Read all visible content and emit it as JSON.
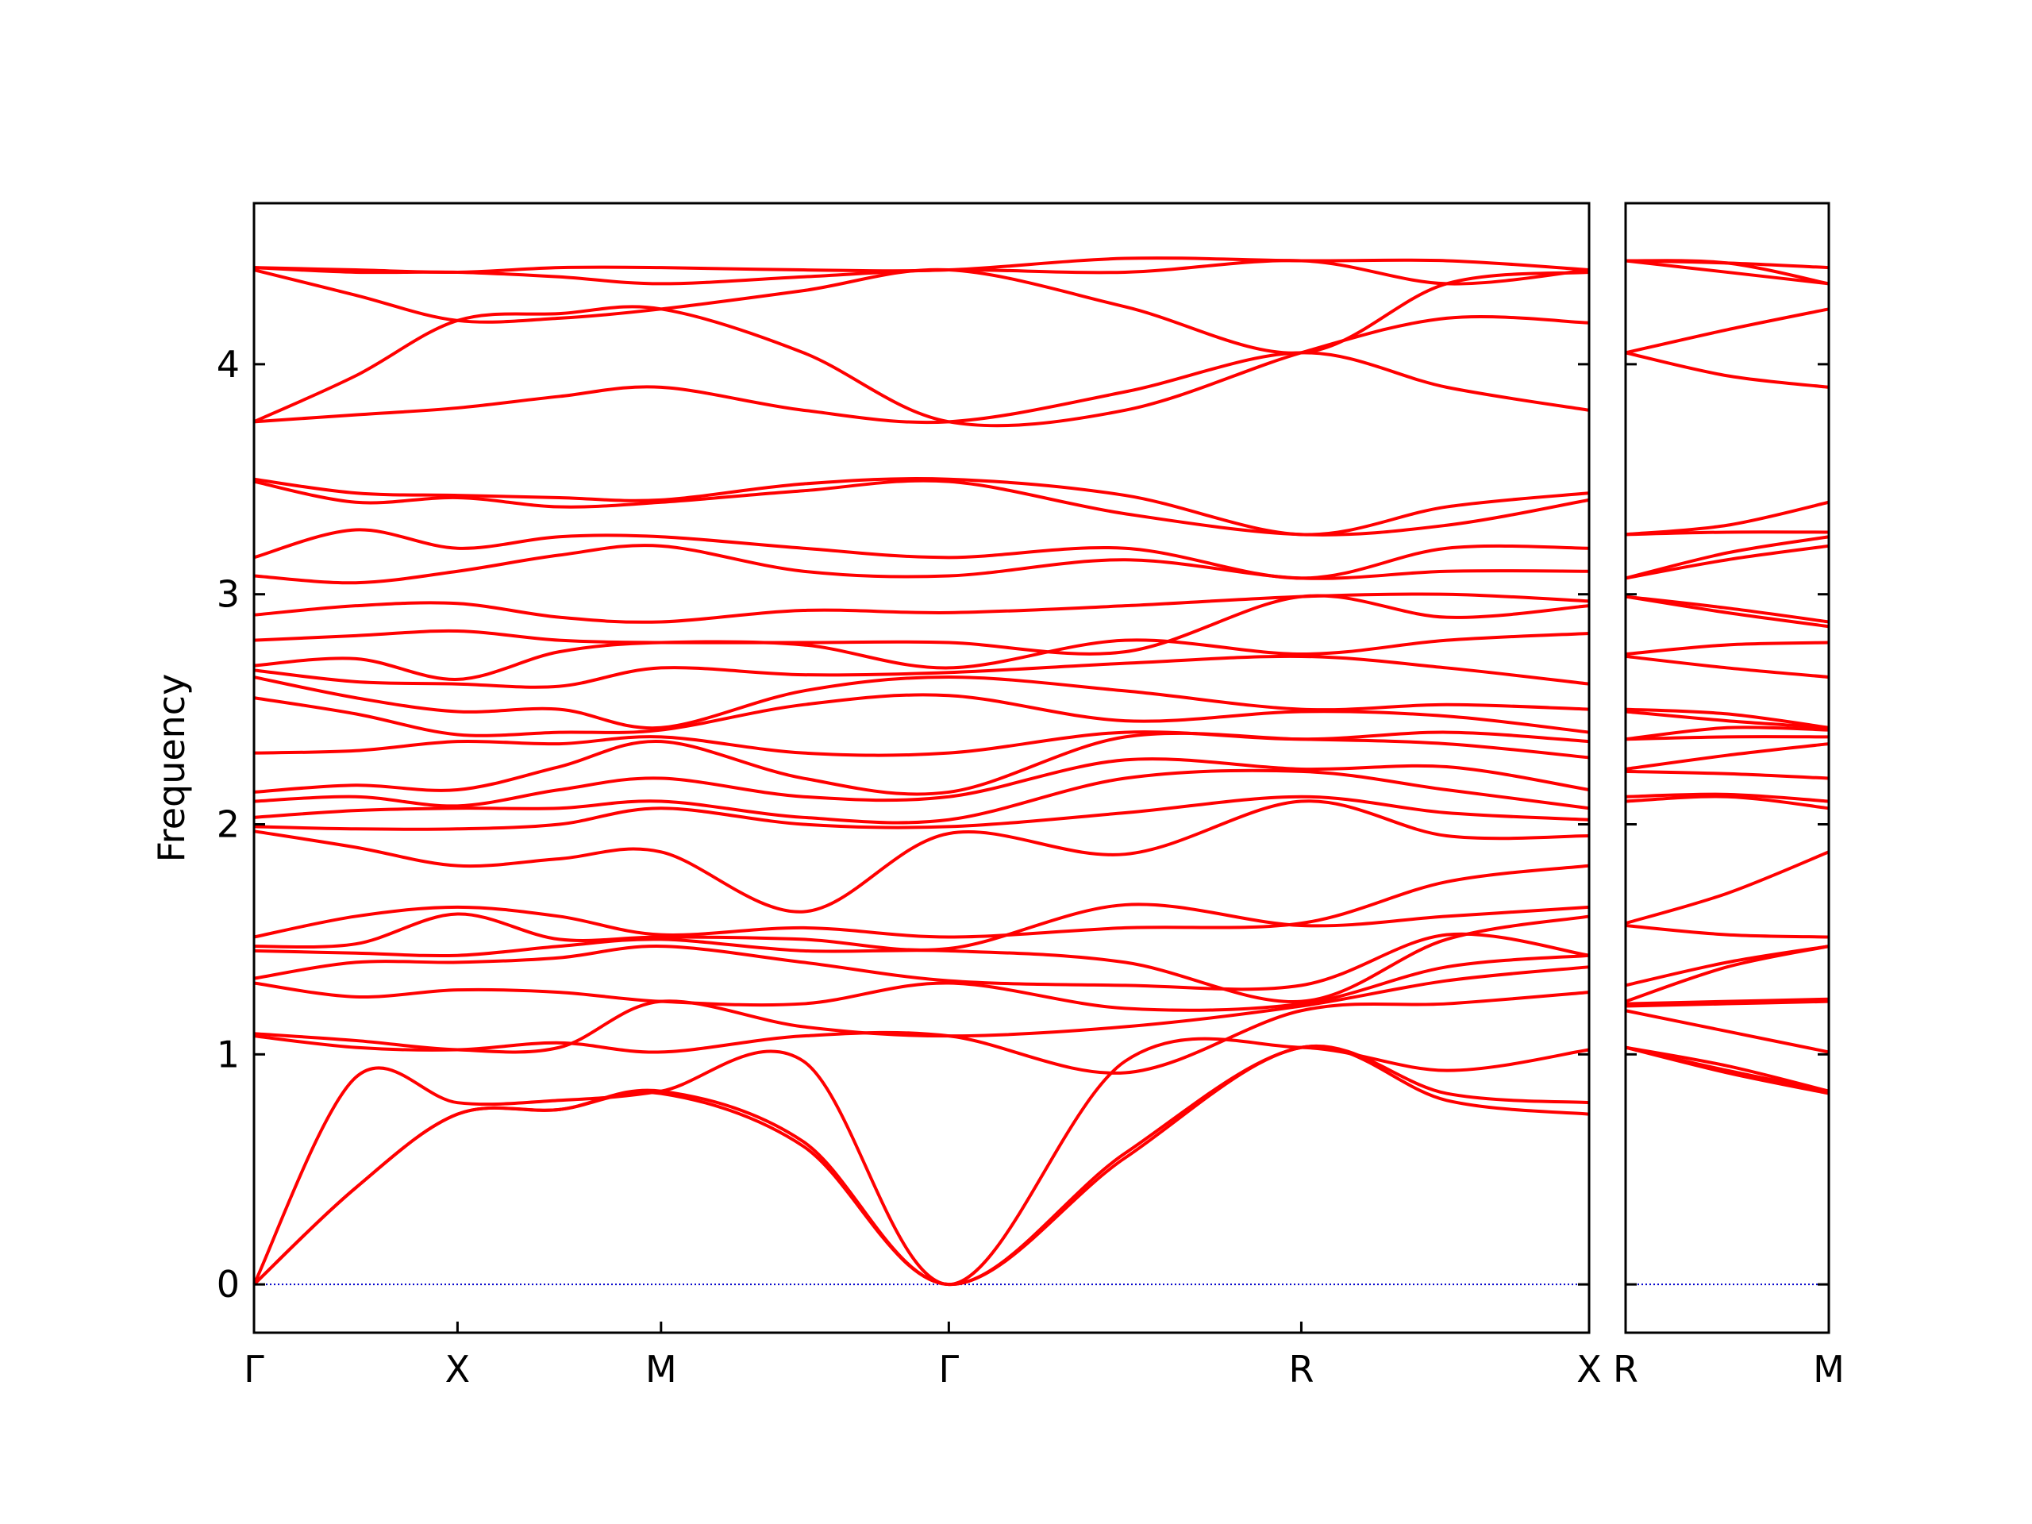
{
  "chart_data": [
    {
      "type": "line",
      "ylabel": "Frequency",
      "color": "#ff0000",
      "zero_line_color": "#0000cc",
      "ytick_labels": true,
      "x": [
        0,
        0.25,
        0.5,
        0.75,
        1.0,
        1.35,
        1.707,
        2.14,
        2.573,
        2.93,
        3.28
      ],
      "xlim": [
        0,
        3.28
      ],
      "xticks": [
        {
          "value": 0,
          "label": "Γ"
        },
        {
          "value": 0.5,
          "label": "X"
        },
        {
          "value": 1.0,
          "label": "M"
        },
        {
          "value": 1.707,
          "label": "Γ"
        },
        {
          "value": 2.573,
          "label": "R"
        },
        {
          "value": 3.28,
          "label": "X"
        }
      ],
      "ylim": [
        -0.21,
        4.7
      ],
      "yticks": [
        0,
        1,
        2,
        3,
        4
      ],
      "bands": [
        [
          0,
          0.42,
          0.74,
          0.76,
          0.83,
          0.6,
          0,
          0.55,
          1.03,
          0.8,
          0.74
        ],
        [
          0,
          0.42,
          0.74,
          0.76,
          0.84,
          0.62,
          0,
          0.57,
          1.03,
          0.83,
          0.79
        ],
        [
          0,
          0.9,
          0.79,
          0.8,
          0.84,
          0.97,
          0,
          0.97,
          1.03,
          0.93,
          1.02
        ],
        [
          1.08,
          1.03,
          1.02,
          1.05,
          1.01,
          1.08,
          1.08,
          0.92,
          1.19,
          1.22,
          1.27
        ],
        [
          1.09,
          1.06,
          1.02,
          1.03,
          1.23,
          1.12,
          1.08,
          1.12,
          1.21,
          1.32,
          1.38
        ],
        [
          1.31,
          1.25,
          1.28,
          1.27,
          1.23,
          1.22,
          1.31,
          1.2,
          1.22,
          1.38,
          1.43
        ],
        [
          1.33,
          1.4,
          1.4,
          1.42,
          1.47,
          1.4,
          1.32,
          1.3,
          1.3,
          1.52,
          1.43
        ],
        [
          1.45,
          1.44,
          1.43,
          1.47,
          1.5,
          1.45,
          1.45,
          1.4,
          1.23,
          1.5,
          1.6
        ],
        [
          1.47,
          1.48,
          1.61,
          1.5,
          1.51,
          1.5,
          1.46,
          1.65,
          1.56,
          1.6,
          1.64
        ],
        [
          1.51,
          1.6,
          1.64,
          1.6,
          1.52,
          1.55,
          1.51,
          1.55,
          1.57,
          1.75,
          1.82
        ],
        [
          1.97,
          1.9,
          1.82,
          1.85,
          1.88,
          1.62,
          1.96,
          1.87,
          2.1,
          1.95,
          1.95
        ],
        [
          1.99,
          1.98,
          1.98,
          2.0,
          2.07,
          2.0,
          1.99,
          2.05,
          2.12,
          2.05,
          2.02
        ],
        [
          2.03,
          2.06,
          2.07,
          2.07,
          2.1,
          2.03,
          2.02,
          2.2,
          2.23,
          2.15,
          2.07
        ],
        [
          2.1,
          2.12,
          2.08,
          2.15,
          2.2,
          2.12,
          2.12,
          2.28,
          2.24,
          2.25,
          2.15
        ],
        [
          2.14,
          2.17,
          2.15,
          2.25,
          2.36,
          2.2,
          2.14,
          2.38,
          2.37,
          2.35,
          2.29
        ],
        [
          2.31,
          2.32,
          2.36,
          2.35,
          2.38,
          2.31,
          2.31,
          2.4,
          2.37,
          2.4,
          2.36
        ],
        [
          2.55,
          2.48,
          2.39,
          2.4,
          2.41,
          2.52,
          2.56,
          2.45,
          2.49,
          2.47,
          2.4
        ],
        [
          2.64,
          2.55,
          2.49,
          2.5,
          2.42,
          2.58,
          2.64,
          2.58,
          2.5,
          2.52,
          2.5
        ],
        [
          2.67,
          2.62,
          2.61,
          2.6,
          2.68,
          2.65,
          2.66,
          2.7,
          2.73,
          2.68,
          2.61
        ],
        [
          2.69,
          2.72,
          2.63,
          2.75,
          2.79,
          2.78,
          2.68,
          2.8,
          2.74,
          2.8,
          2.83
        ],
        [
          2.8,
          2.82,
          2.84,
          2.8,
          2.79,
          2.79,
          2.79,
          2.75,
          2.99,
          2.9,
          2.95
        ],
        [
          2.91,
          2.95,
          2.96,
          2.9,
          2.88,
          2.93,
          2.92,
          2.95,
          2.99,
          3.0,
          2.97
        ],
        [
          3.08,
          3.05,
          3.1,
          3.17,
          3.21,
          3.1,
          3.08,
          3.15,
          3.07,
          3.1,
          3.1
        ],
        [
          3.16,
          3.28,
          3.2,
          3.25,
          3.25,
          3.2,
          3.16,
          3.2,
          3.07,
          3.2,
          3.2
        ],
        [
          3.49,
          3.4,
          3.42,
          3.38,
          3.4,
          3.45,
          3.49,
          3.35,
          3.26,
          3.3,
          3.41
        ],
        [
          3.5,
          3.44,
          3.43,
          3.42,
          3.41,
          3.48,
          3.5,
          3.43,
          3.26,
          3.38,
          3.44
        ],
        [
          3.75,
          3.78,
          3.81,
          3.86,
          3.9,
          3.8,
          3.75,
          3.88,
          4.05,
          3.9,
          3.8
        ],
        [
          3.75,
          3.95,
          4.19,
          4.22,
          4.24,
          4.05,
          3.75,
          3.8,
          4.05,
          4.2,
          4.18
        ],
        [
          4.41,
          4.3,
          4.19,
          4.2,
          4.24,
          4.32,
          4.41,
          4.25,
          4.05,
          4.35,
          4.4
        ],
        [
          4.42,
          4.4,
          4.4,
          4.38,
          4.35,
          4.38,
          4.41,
          4.4,
          4.45,
          4.35,
          4.41
        ],
        [
          4.42,
          4.41,
          4.4,
          4.42,
          4.42,
          4.41,
          4.41,
          4.46,
          4.45,
          4.45,
          4.41
        ]
      ]
    },
    {
      "type": "line",
      "color": "#ff0000",
      "zero_line_color": "#0000cc",
      "ytick_labels": false,
      "x": [
        0,
        0.25,
        0.5
      ],
      "xlim": [
        0,
        0.5
      ],
      "xticks": [
        {
          "value": 0,
          "label": "R"
        },
        {
          "value": 0.5,
          "label": "M"
        }
      ],
      "ylim": [
        -0.21,
        4.7
      ],
      "yticks": [
        0,
        1,
        2,
        3,
        4
      ],
      "bands": [
        [
          1.03,
          0.92,
          0.83
        ],
        [
          1.03,
          0.93,
          0.84
        ],
        [
          1.03,
          0.95,
          0.84
        ],
        [
          1.19,
          1.1,
          1.01
        ],
        [
          1.21,
          1.22,
          1.23
        ],
        [
          1.22,
          1.23,
          1.24
        ],
        [
          1.3,
          1.4,
          1.47
        ],
        [
          1.23,
          1.38,
          1.47
        ],
        [
          1.56,
          1.52,
          1.51
        ],
        [
          1.57,
          1.7,
          1.88
        ],
        [
          2.1,
          2.12,
          2.07
        ],
        [
          2.12,
          2.13,
          2.1
        ],
        [
          2.23,
          2.22,
          2.2
        ],
        [
          2.24,
          2.3,
          2.35
        ],
        [
          2.37,
          2.38,
          2.38
        ],
        [
          2.37,
          2.42,
          2.41
        ],
        [
          2.49,
          2.45,
          2.42
        ],
        [
          2.5,
          2.48,
          2.42
        ],
        [
          2.73,
          2.68,
          2.64
        ],
        [
          2.74,
          2.78,
          2.79
        ],
        [
          2.99,
          2.92,
          2.86
        ],
        [
          2.99,
          2.94,
          2.88
        ],
        [
          3.07,
          3.15,
          3.21
        ],
        [
          3.07,
          3.18,
          3.25
        ],
        [
          3.26,
          3.27,
          3.27
        ],
        [
          3.26,
          3.3,
          3.4
        ],
        [
          4.05,
          3.95,
          3.9
        ],
        [
          4.05,
          4.15,
          4.24
        ],
        [
          4.45,
          4.4,
          4.35
        ],
        [
          4.45,
          4.44,
          4.35
        ],
        [
          4.45,
          4.44,
          4.42
        ]
      ]
    }
  ]
}
